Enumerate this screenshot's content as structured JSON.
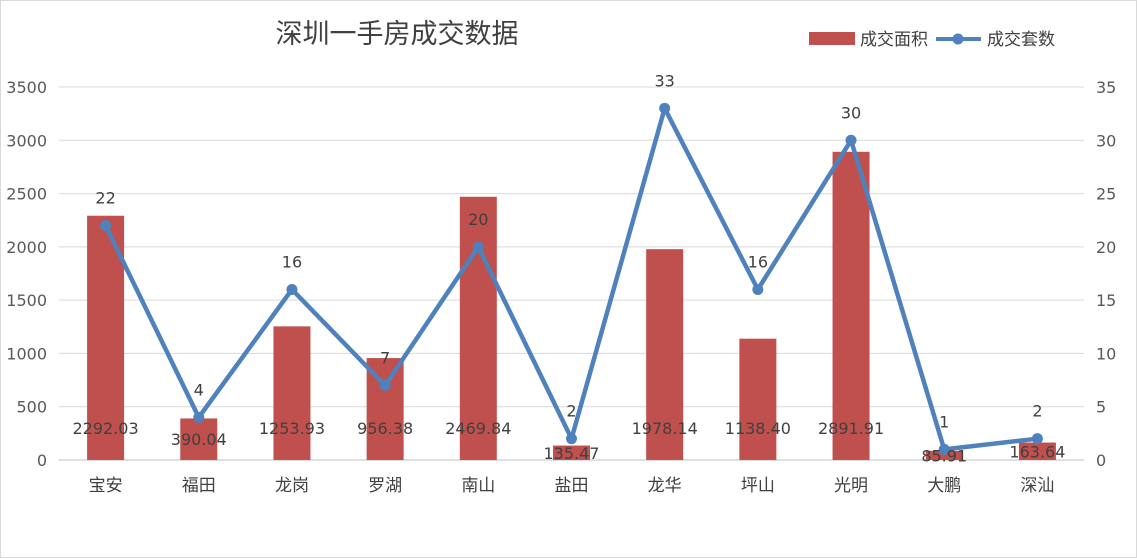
{
  "chart_data": {
    "type": "bar+line",
    "title": "深圳一手房成交数据",
    "categories": [
      "宝安",
      "福田",
      "龙岗",
      "罗湖",
      "南山",
      "盐田",
      "龙华",
      "坪山",
      "光明",
      "大鹏",
      "深汕"
    ],
    "series": [
      {
        "name": "成交面积",
        "type": "bar",
        "axis": "left",
        "color": "#c0504d",
        "values": [
          2292.03,
          390.04,
          1253.93,
          956.38,
          2469.84,
          135.47,
          1978.14,
          1138.4,
          2891.91,
          85.91,
          163.64
        ],
        "labels": [
          "2292.03",
          "390.04",
          "1253.93",
          "956.38",
          "2469.84",
          "135.47",
          "1978.14",
          "1138.40",
          "2891.91",
          "85.91",
          "163.64"
        ]
      },
      {
        "name": "成交套数",
        "type": "line",
        "axis": "right",
        "color": "#4f81bd",
        "values": [
          22,
          4,
          16,
          7,
          20,
          2,
          33,
          16,
          30,
          1,
          2
        ],
        "labels": [
          "22",
          "4",
          "16",
          "7",
          "20",
          "2",
          "33",
          "16",
          "30",
          "1",
          "2"
        ]
      }
    ],
    "y_left": {
      "min": 0,
      "max": 3500,
      "step": 500,
      "ticks": [
        "0",
        "500",
        "1000",
        "1500",
        "2000",
        "2500",
        "3000",
        "3500"
      ]
    },
    "y_right": {
      "min": 0,
      "max": 35,
      "step": 5,
      "ticks": [
        "0",
        "5",
        "10",
        "15",
        "20",
        "25",
        "30",
        "35"
      ]
    },
    "grid": true,
    "legend_position": "top-right"
  }
}
